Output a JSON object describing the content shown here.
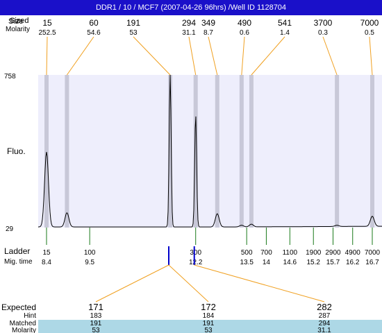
{
  "title": "DDR1 / 10 / MCF7 (2007-04-26 96hrs) /Well ID 1128704",
  "colors": {
    "title_bar": "#1a10c9",
    "plot_bg": "#eeeefc",
    "peak_band": "#c8c8d8",
    "trace": "#000000",
    "leader": "#f0a020",
    "ladder_tick": "#1a7a1a",
    "marker": "#0000cc",
    "matched_band": "#add8e6",
    "expected_text": "#dd2222"
  },
  "header": {
    "size_label_a": "Size",
    "size_label_b": "Sized",
    "molarity_label": "Molarity"
  },
  "axis": {
    "y_label": "Fluo.",
    "y_max": "758",
    "y_min": "29"
  },
  "ladder_labels": {
    "ladder": "Ladder",
    "mig_time": "Mig. time"
  },
  "expected_labels": {
    "expected": "Expected",
    "hint": "Hint",
    "matched": "Matched",
    "molarity": "Molarity"
  },
  "chart_data": {
    "type": "line",
    "xlabel": "Mig. time",
    "ylabel": "Fluo.",
    "ylim": [
      29,
      758
    ],
    "xlim": [
      8.0,
      16.85
    ],
    "peaks": [
      {
        "size": "15",
        "molarity": "252.5",
        "time": 8.4,
        "height": 390
      },
      {
        "size": "60",
        "molarity": "54.6",
        "time": 8.92,
        "height": 100
      },
      {
        "size": "191",
        "molarity": "53",
        "time": 11.55,
        "height": 758
      },
      {
        "size": "294",
        "molarity": "31.1",
        "time": 12.2,
        "height": 570
      },
      {
        "size": "349",
        "molarity": "8.7",
        "time": 12.75,
        "height": 95
      },
      {
        "size": "490",
        "molarity": "0.6",
        "time": 13.37,
        "height": 40
      },
      {
        "size": "541",
        "molarity": "1.4",
        "time": 13.62,
        "height": 45
      },
      {
        "size": "3700",
        "molarity": "0.3",
        "time": 15.8,
        "height": 38
      },
      {
        "size": "7000",
        "molarity": "0.5",
        "time": 16.7,
        "height": 80
      }
    ],
    "ladder": [
      {
        "size": "15",
        "time": "8.4"
      },
      {
        "size": "100",
        "time": "9.5"
      },
      {
        "size": "300",
        "time": "12.2"
      },
      {
        "size": "500",
        "time": "13.5"
      },
      {
        "size": "700",
        "time": "14"
      },
      {
        "size": "1100",
        "time": "14.6"
      },
      {
        "size": "1900",
        "time": "15.2"
      },
      {
        "size": "2900",
        "time": "15.7"
      },
      {
        "size": "4900",
        "time": "16.2"
      },
      {
        "size": "7000",
        "time": "16.7"
      }
    ],
    "markers": [
      {
        "time": 11.55
      },
      {
        "time": 12.2
      }
    ],
    "expected": [
      {
        "expected": "171",
        "hint": "183",
        "matched": "191",
        "molarity": "53",
        "from_marker": 0
      },
      {
        "expected": "172",
        "hint": "184",
        "matched": "191",
        "molarity": "53",
        "from_marker": 0
      },
      {
        "expected": "282",
        "hint": "287",
        "matched": "294",
        "molarity": "31.1",
        "from_marker": 1
      }
    ]
  }
}
